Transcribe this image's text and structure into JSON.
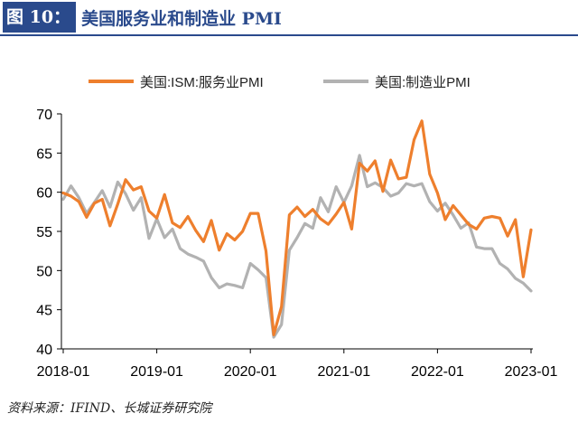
{
  "header": {
    "figure_label": "图 10：",
    "title": "美国服务业和制造业 PMI"
  },
  "source": "资料来源：IFIND、长城证券研究院",
  "chart_data": {
    "type": "line",
    "title": "美国服务业和制造业 PMI",
    "xlabel": "",
    "ylabel": "",
    "ylim": [
      40,
      70
    ],
    "yticks": [
      40,
      45,
      50,
      55,
      60,
      65,
      70
    ],
    "xtick_labels": [
      "2018-01",
      "2019-01",
      "2020-01",
      "2021-01",
      "2022-01",
      "2023-01"
    ],
    "x_start": "2018-01",
    "x_end": "2023-01",
    "grid": false,
    "legend_position": "top",
    "series": [
      {
        "name": "美国:ISM:服务业PMI",
        "color": "#ee7f2d",
        "values": [
          59.9,
          59.5,
          58.8,
          56.8,
          58.6,
          59.1,
          55.7,
          58.5,
          61.6,
          60.3,
          60.7,
          57.6,
          56.7,
          59.7,
          56.1,
          55.5,
          56.9,
          55.1,
          53.7,
          56.4,
          52.6,
          54.7,
          53.9,
          55.0,
          57.3,
          57.3,
          52.5,
          41.8,
          45.4,
          57.1,
          58.1,
          56.9,
          57.8,
          56.6,
          55.9,
          57.2,
          58.7,
          55.3,
          63.7,
          62.7,
          64.0,
          60.1,
          64.1,
          61.7,
          61.9,
          66.7,
          69.1,
          62.3,
          59.9,
          56.5,
          58.3,
          57.1,
          55.9,
          55.3,
          56.7,
          56.9,
          56.7,
          54.4,
          56.5,
          49.2,
          55.2
        ],
        "labels_in_legend": true
      },
      {
        "name": "美国:制造业PMI",
        "color": "#b2b2b2",
        "values": [
          59.1,
          60.8,
          59.3,
          57.3,
          58.7,
          60.2,
          58.1,
          61.3,
          59.8,
          57.7,
          59.3,
          54.1,
          56.6,
          54.2,
          55.3,
          52.8,
          52.1,
          51.7,
          51.2,
          49.1,
          47.8,
          48.3,
          48.1,
          47.8,
          50.9,
          50.1,
          49.1,
          41.5,
          43.1,
          52.6,
          54.2,
          56.0,
          55.4,
          59.3,
          57.5,
          60.7,
          58.7,
          60.8,
          64.7,
          60.7,
          61.2,
          60.6,
          59.5,
          59.9,
          61.1,
          60.8,
          61.1,
          58.8,
          57.6,
          58.6,
          57.1,
          55.4,
          56.1,
          53.0,
          52.8,
          52.8,
          50.9,
          50.2,
          49.0,
          48.4,
          47.4
        ]
      }
    ]
  }
}
